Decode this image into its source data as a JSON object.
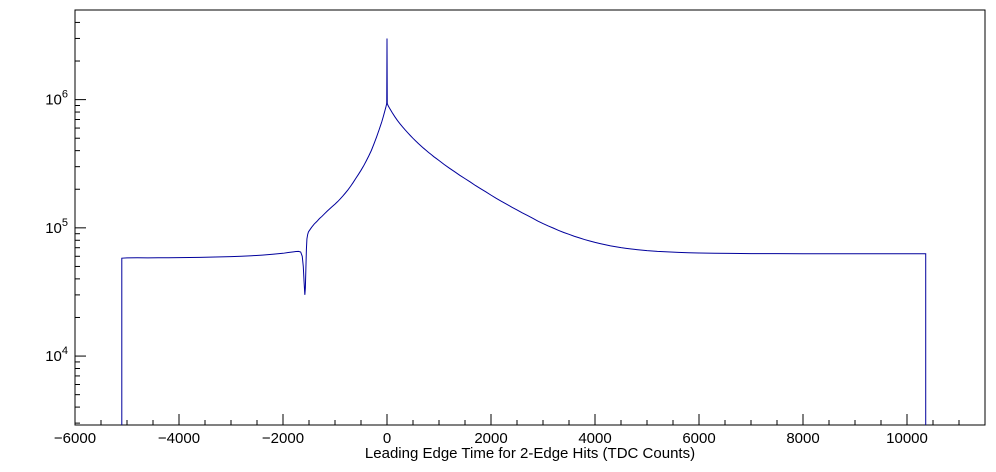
{
  "chart_data": {
    "type": "line",
    "title": "",
    "xlabel": "Leading Edge Time for 2-Edge Hits (TDC Counts)",
    "ylabel": "",
    "yscale": "log",
    "grid": false,
    "legend": "none",
    "xlim": [
      -6000,
      11500
    ],
    "ylim": [
      2900,
      5000000
    ],
    "line_color": "#00009c",
    "x_ticks": [
      -6000,
      -4000,
      -2000,
      0,
      2000,
      4000,
      6000,
      8000,
      10000
    ],
    "x_tick_labels": [
      "−6000",
      "−4000",
      "−2000",
      "0",
      "2000",
      "4000",
      "6000",
      "8000",
      "10000"
    ],
    "x_minor_step": 500,
    "y_ticks": [
      {
        "value": 10000,
        "base": "10",
        "exp": "4"
      },
      {
        "value": 100000,
        "base": "10",
        "exp": "5"
      },
      {
        "value": 1000000,
        "base": "10",
        "exp": "6"
      }
    ],
    "points": [
      [
        -5100,
        2900
      ],
      [
        -5100,
        58000
      ],
      [
        -5000,
        58300
      ],
      [
        -4800,
        58400
      ],
      [
        -4600,
        58300
      ],
      [
        -4400,
        58500
      ],
      [
        -4200,
        58400
      ],
      [
        -4000,
        58600
      ],
      [
        -3800,
        58700
      ],
      [
        -3600,
        58900
      ],
      [
        -3400,
        59100
      ],
      [
        -3200,
        59400
      ],
      [
        -3000,
        59700
      ],
      [
        -2800,
        60100
      ],
      [
        -2600,
        60600
      ],
      [
        -2400,
        61300
      ],
      [
        -2200,
        62200
      ],
      [
        -2000,
        63300
      ],
      [
        -1900,
        64200
      ],
      [
        -1800,
        65000
      ],
      [
        -1750,
        65400
      ],
      [
        -1700,
        65500
      ],
      [
        -1660,
        64800
      ],
      [
        -1630,
        60000
      ],
      [
        -1610,
        50000
      ],
      [
        -1595,
        38000
      ],
      [
        -1580,
        30000
      ],
      [
        -1570,
        34000
      ],
      [
        -1560,
        48000
      ],
      [
        -1550,
        68000
      ],
      [
        -1540,
        82000
      ],
      [
        -1525,
        89000
      ],
      [
        -1510,
        93000
      ],
      [
        -1480,
        97000
      ],
      [
        -1450,
        101000
      ],
      [
        -1400,
        107000
      ],
      [
        -1350,
        112000
      ],
      [
        -1300,
        118000
      ],
      [
        -1250,
        123000
      ],
      [
        -1200,
        129000
      ],
      [
        -1150,
        135000
      ],
      [
        -1100,
        141000
      ],
      [
        -1050,
        147000
      ],
      [
        -1000,
        153000
      ],
      [
        -950,
        160000
      ],
      [
        -900,
        168000
      ],
      [
        -850,
        177000
      ],
      [
        -800,
        187000
      ],
      [
        -750,
        198000
      ],
      [
        -700,
        211000
      ],
      [
        -650,
        226000
      ],
      [
        -600,
        243000
      ],
      [
        -550,
        261000
      ],
      [
        -500,
        281000
      ],
      [
        -450,
        304000
      ],
      [
        -400,
        332000
      ],
      [
        -350,
        364000
      ],
      [
        -300,
        402000
      ],
      [
        -250,
        452000
      ],
      [
        -200,
        512000
      ],
      [
        -150,
        585000
      ],
      [
        -100,
        672000
      ],
      [
        -70,
        740000
      ],
      [
        -40,
        820000
      ],
      [
        -20,
        880000
      ],
      [
        -10,
        915000
      ],
      [
        -5,
        940000
      ],
      [
        0,
        3000000
      ],
      [
        5,
        935000
      ],
      [
        20,
        900000
      ],
      [
        40,
        870000
      ],
      [
        70,
        830000
      ],
      [
        100,
        792000
      ],
      [
        150,
        736000
      ],
      [
        200,
        688000
      ],
      [
        250,
        648000
      ],
      [
        300,
        612000
      ],
      [
        350,
        580000
      ],
      [
        400,
        551000
      ],
      [
        450,
        524000
      ],
      [
        500,
        499000
      ],
      [
        550,
        477000
      ],
      [
        600,
        456000
      ],
      [
        650,
        437000
      ],
      [
        700,
        419000
      ],
      [
        750,
        403000
      ],
      [
        800,
        387000
      ],
      [
        850,
        373000
      ],
      [
        900,
        359000
      ],
      [
        950,
        347000
      ],
      [
        1000,
        335000
      ],
      [
        1100,
        312000
      ],
      [
        1200,
        292000
      ],
      [
        1300,
        274000
      ],
      [
        1400,
        257000
      ],
      [
        1500,
        242000
      ],
      [
        1600,
        228000
      ],
      [
        1700,
        214000
      ],
      [
        1800,
        202000
      ],
      [
        1900,
        191000
      ],
      [
        2000,
        180000
      ],
      [
        2100,
        170000
      ],
      [
        2200,
        161000
      ],
      [
        2300,
        153000
      ],
      [
        2400,
        145000
      ],
      [
        2500,
        138000
      ],
      [
        2600,
        131000
      ],
      [
        2700,
        125000
      ],
      [
        2800,
        119000
      ],
      [
        2900,
        113000
      ],
      [
        3000,
        108000
      ],
      [
        3100,
        103500
      ],
      [
        3200,
        99500
      ],
      [
        3300,
        95500
      ],
      [
        3400,
        92000
      ],
      [
        3500,
        89000
      ],
      [
        3600,
        86000
      ],
      [
        3700,
        83500
      ],
      [
        3800,
        81000
      ],
      [
        3900,
        79000
      ],
      [
        4000,
        77000
      ],
      [
        4100,
        75300
      ],
      [
        4200,
        73800
      ],
      [
        4300,
        72400
      ],
      [
        4400,
        71200
      ],
      [
        4500,
        70100
      ],
      [
        4600,
        69200
      ],
      [
        4700,
        68400
      ],
      [
        4800,
        67700
      ],
      [
        4900,
        67000
      ],
      [
        5000,
        66400
      ],
      [
        5200,
        65500
      ],
      [
        5400,
        64900
      ],
      [
        5600,
        64400
      ],
      [
        5800,
        64000
      ],
      [
        6000,
        63700
      ],
      [
        6300,
        63400
      ],
      [
        6600,
        63200
      ],
      [
        7000,
        63000
      ],
      [
        7500,
        62900
      ],
      [
        8000,
        62800
      ],
      [
        8500,
        62800
      ],
      [
        9000,
        62800
      ],
      [
        9500,
        62800
      ],
      [
        10000,
        62800
      ],
      [
        10360,
        62800
      ],
      [
        10360,
        2900
      ]
    ]
  }
}
